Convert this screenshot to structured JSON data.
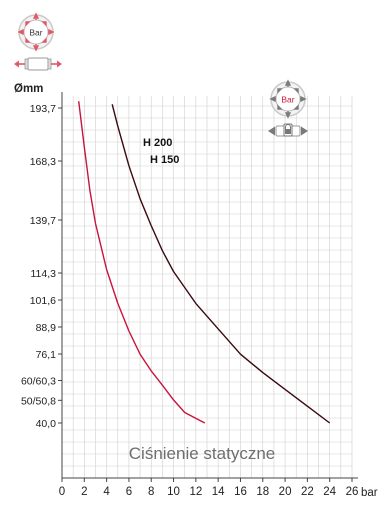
{
  "icons": {
    "left_badge_label": "Bar",
    "right_badge_label": "Bar"
  },
  "colors": {
    "grid": "#cfcfcf",
    "axis": "#444444",
    "series_h150": "#c8143c",
    "series_h200": "#3a0a10",
    "accent": "#e05a6a"
  },
  "chart_data": {
    "type": "line",
    "title": "",
    "annotation": "Ciśnienie statyczne",
    "xlabel": "bar",
    "ylabel": "Ømm",
    "xlim": [
      0,
      26
    ],
    "x_ticks": [
      "0",
      "2",
      "4",
      "6",
      "8",
      "10",
      "12",
      "14",
      "16",
      "18",
      "20",
      "22",
      "24",
      "26"
    ],
    "y_ticks": [
      "193,7",
      "168,3",
      "139,7",
      "114,3",
      "101,6",
      "88,9",
      "76,1",
      "60/60,3",
      "50/50,8",
      "40,0"
    ],
    "series_labels": [
      "H 200",
      "H 150"
    ],
    "series": [
      {
        "name": "H 150",
        "color": "#c8143c",
        "points": [
          [
            1.5,
            198
          ],
          [
            2,
            175
          ],
          [
            2.5,
            154
          ],
          [
            3,
            138
          ],
          [
            4,
            116
          ],
          [
            5,
            100
          ],
          [
            6,
            87
          ],
          [
            7,
            76
          ],
          [
            8,
            66
          ],
          [
            9,
            58
          ],
          [
            10,
            51
          ],
          [
            11,
            45
          ],
          [
            12.8,
            40
          ]
        ]
      },
      {
        "name": "H 200",
        "color": "#3a0a10",
        "points": [
          [
            4.5,
            196
          ],
          [
            5,
            185
          ],
          [
            6,
            166
          ],
          [
            7,
            150
          ],
          [
            8,
            137
          ],
          [
            9,
            125
          ],
          [
            10,
            115
          ],
          [
            12,
            100
          ],
          [
            14,
            88
          ],
          [
            16,
            76
          ],
          [
            18,
            65
          ],
          [
            20,
            56
          ],
          [
            22,
            48
          ],
          [
            24,
            40
          ]
        ]
      }
    ]
  }
}
